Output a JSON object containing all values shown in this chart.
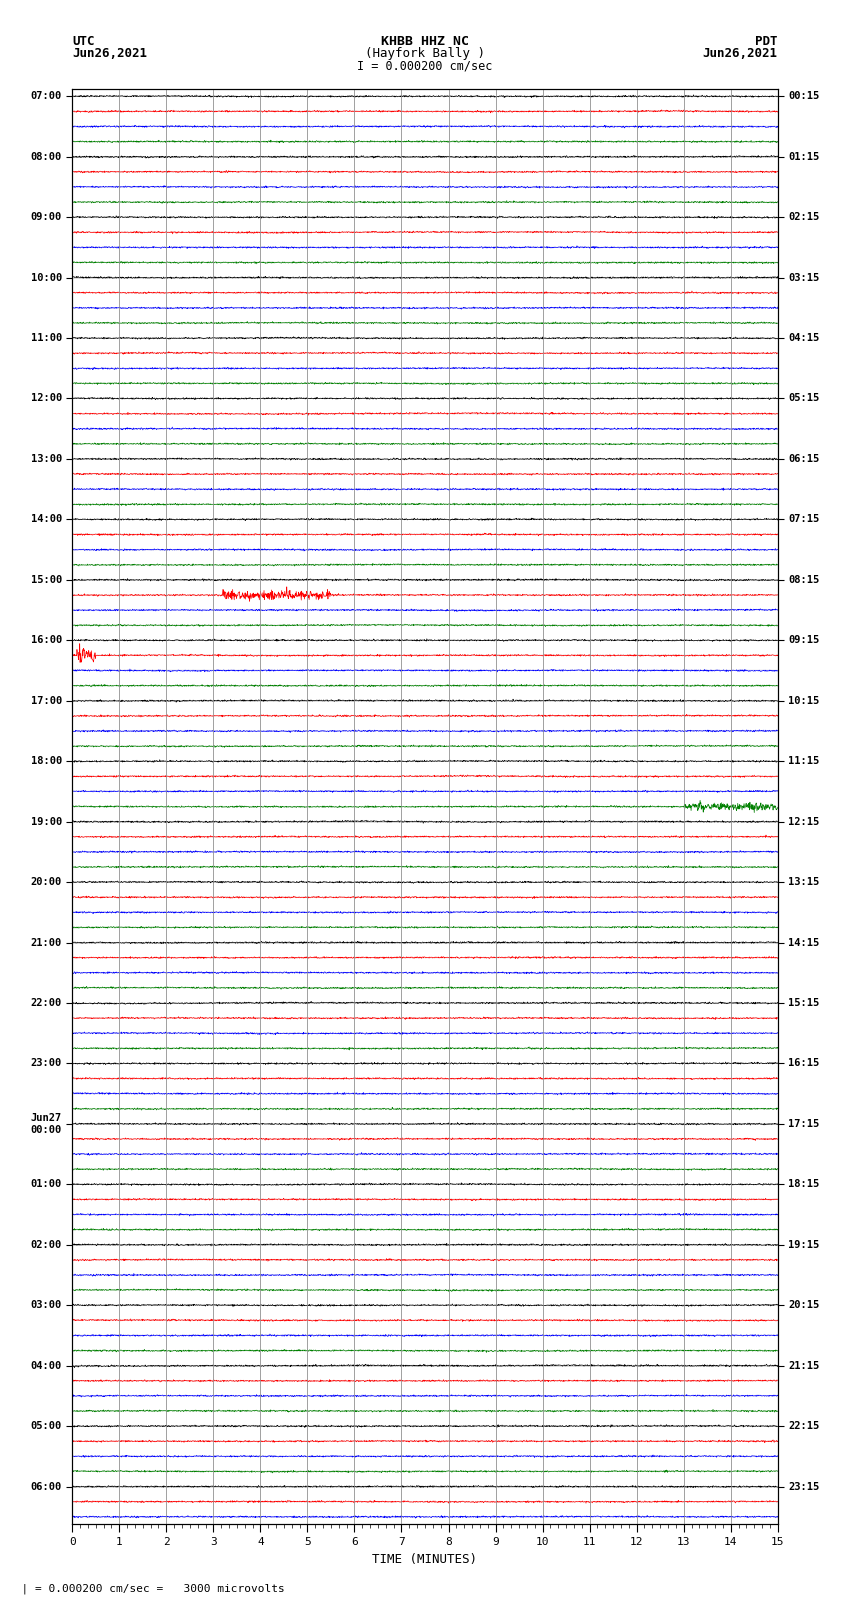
{
  "title_line1": "KHBB HHZ NC",
  "title_line2": "(Hayfork Bally )",
  "title_scale": "I = 0.000200 cm/sec",
  "left_label_top": "UTC",
  "left_label_date": "Jun26,2021",
  "right_label_top": "PDT",
  "right_label_date": "Jun26,2021",
  "xlabel": "TIME (MINUTES)",
  "scale_note": "  | = 0.000200 cm/sec =   3000 microvolts",
  "xmin": 0,
  "xmax": 15,
  "xticks": [
    0,
    1,
    2,
    3,
    4,
    5,
    6,
    7,
    8,
    9,
    10,
    11,
    12,
    13,
    14,
    15
  ],
  "bg_color": "#ffffff",
  "trace_colors": [
    "black",
    "red",
    "blue",
    "green"
  ],
  "left_times_utc": [
    "07:00",
    "",
    "",
    "",
    "08:00",
    "",
    "",
    "",
    "09:00",
    "",
    "",
    "",
    "10:00",
    "",
    "",
    "",
    "11:00",
    "",
    "",
    "",
    "12:00",
    "",
    "",
    "",
    "13:00",
    "",
    "",
    "",
    "14:00",
    "",
    "",
    "",
    "15:00",
    "",
    "",
    "",
    "16:00",
    "",
    "",
    "",
    "17:00",
    "",
    "",
    "",
    "18:00",
    "",
    "",
    "",
    "19:00",
    "",
    "",
    "",
    "20:00",
    "",
    "",
    "",
    "21:00",
    "",
    "",
    "",
    "22:00",
    "",
    "",
    "",
    "23:00",
    "",
    "",
    "",
    "Jun27\n00:00",
    "",
    "",
    "",
    "01:00",
    "",
    "",
    "",
    "02:00",
    "",
    "",
    "",
    "03:00",
    "",
    "",
    "",
    "04:00",
    "",
    "",
    "",
    "05:00",
    "",
    "",
    "",
    "06:00",
    "",
    ""
  ],
  "right_times_pdt": [
    "00:15",
    "",
    "",
    "",
    "01:15",
    "",
    "",
    "",
    "02:15",
    "",
    "",
    "",
    "03:15",
    "",
    "",
    "",
    "04:15",
    "",
    "",
    "",
    "05:15",
    "",
    "",
    "",
    "06:15",
    "",
    "",
    "",
    "07:15",
    "",
    "",
    "",
    "08:15",
    "",
    "",
    "",
    "09:15",
    "",
    "",
    "",
    "10:15",
    "",
    "",
    "",
    "11:15",
    "",
    "",
    "",
    "12:15",
    "",
    "",
    "",
    "13:15",
    "",
    "",
    "",
    "14:15",
    "",
    "",
    "",
    "15:15",
    "",
    "",
    "",
    "16:15",
    "",
    "",
    "",
    "17:15",
    "",
    "",
    "",
    "18:15",
    "",
    "",
    "",
    "19:15",
    "",
    "",
    "",
    "20:15",
    "",
    "",
    "",
    "21:15",
    "",
    "",
    "",
    "22:15",
    "",
    "",
    "",
    "23:15",
    "",
    ""
  ],
  "n_traces": 95,
  "grid_color": "#999999",
  "noise_scale": 0.025,
  "lf_scale": 0.01
}
